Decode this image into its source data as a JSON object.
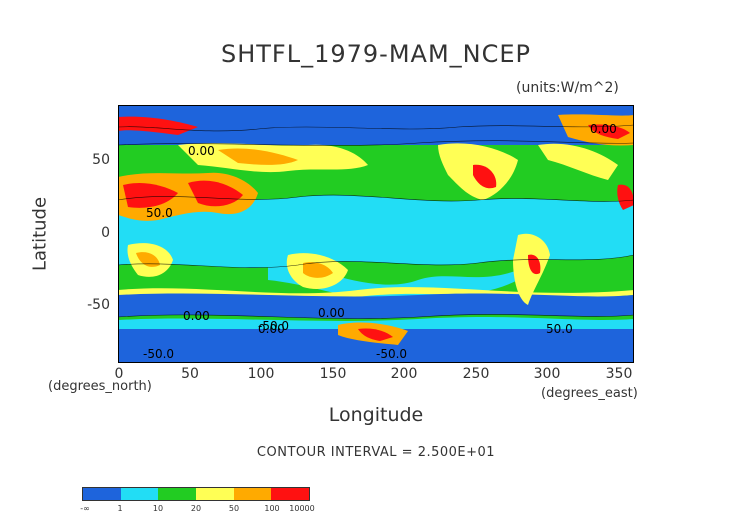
{
  "title": "SHTFL_1979-MAM_NCEP",
  "units": "(units:W/m^2)",
  "axes": {
    "ylabel": "Latitude",
    "xlabel": "Longitude",
    "y_unit": "(degrees_north)",
    "x_unit": "(degrees_east)",
    "y_ticks": [
      "50",
      "0",
      "-50"
    ],
    "x_ticks": [
      "0",
      "50",
      "100",
      "150",
      "200",
      "250",
      "300",
      "350"
    ],
    "x_range": [
      0,
      360
    ],
    "y_range": [
      -90,
      90
    ]
  },
  "contour_labels": [
    "0.00",
    "50.0",
    "0.00",
    "0.00",
    "-50.0",
    "0.00",
    "-50.0",
    "-50.0",
    "0.00",
    "50.0"
  ],
  "contour_interval": "CONTOUR INTERVAL = 2.500E+01",
  "colorbar": {
    "colors": [
      "#1e64dc",
      "#1e64dc",
      "#22ddf5",
      "#22ddf5",
      "#22cc22",
      "#22cc22",
      "#ffff55",
      "#ffff55",
      "#ffaa00",
      "#ffaa00",
      "#ff1111",
      "#ff1111"
    ],
    "labels": [
      "-∞",
      "1",
      "10",
      "20",
      "50",
      "100",
      "10000"
    ]
  },
  "colors": {
    "ocean_blue": "#1e64dc",
    "cyan": "#22ddf5",
    "green": "#22cc22",
    "yellow": "#ffff55",
    "orange": "#ffaa00",
    "red": "#ff1111"
  }
}
